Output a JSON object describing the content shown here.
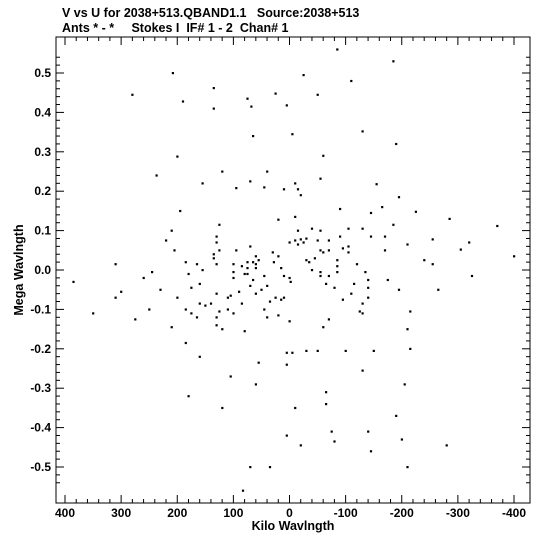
{
  "header": {
    "title_line1": "V vs U for 2038+513.QBAND1.1   Source:2038+513",
    "title_line2": "Ants * - *     Stokes I  IF# 1 - 2  Chan# 1"
  },
  "chart_data": {
    "type": "scatter",
    "xlabel": "Kilo Wavlngth",
    "ylabel": "Mega Wavlngth",
    "xlim": [
      410,
      -410
    ],
    "ylim": [
      -0.57,
      0.57
    ],
    "xticks": [
      400,
      300,
      200,
      100,
      0,
      -100,
      -200,
      -300,
      -400
    ],
    "yticks": [
      0.5,
      0.4,
      0.3,
      0.2,
      0.1,
      0.0,
      -0.1,
      -0.2,
      -0.3,
      -0.4,
      -0.5
    ],
    "xtick_labels": [
      "400",
      "300",
      "200",
      "100",
      "0",
      "-100",
      "-200",
      "-300",
      "-400"
    ],
    "ytick_labels": [
      "0.5",
      "0.4",
      "0.3",
      "0.2",
      "0.1",
      "0.0",
      "-0.1",
      "-0.2",
      "-0.3",
      "-0.4",
      "-0.5"
    ],
    "point_color": "#000000",
    "points": [
      [
        -85,
        0.56
      ],
      [
        -185,
        0.53
      ],
      [
        -25,
        0.495
      ],
      [
        208,
        0.5
      ],
      [
        280,
        0.445
      ],
      [
        -110,
        0.48
      ],
      [
        135,
        0.462
      ],
      [
        190,
        0.428
      ],
      [
        75,
        0.435
      ],
      [
        68,
        0.415
      ],
      [
        135,
        0.41
      ],
      [
        25,
        0.448
      ],
      [
        5,
        0.418
      ],
      [
        -50,
        0.445
      ],
      [
        -130,
        0.352
      ],
      [
        -190,
        0.32
      ],
      [
        -5,
        0.345
      ],
      [
        65,
        0.34
      ],
      [
        200,
        0.288
      ],
      [
        -60,
        0.29
      ],
      [
        120,
        0.25
      ],
      [
        40,
        0.25
      ],
      [
        237,
        0.24
      ],
      [
        -155,
        0.218
      ],
      [
        155,
        0.22
      ],
      [
        -55,
        0.232
      ],
      [
        70,
        0.225
      ],
      [
        45,
        0.21
      ],
      [
        10,
        0.205
      ],
      [
        -10,
        0.22
      ],
      [
        -15,
        0.205
      ],
      [
        95,
        0.208
      ],
      [
        -195,
        0.185
      ],
      [
        -165,
        0.16
      ],
      [
        -90,
        0.155
      ],
      [
        195,
        0.15
      ],
      [
        -10,
        0.135
      ],
      [
        -20,
        0.19
      ],
      [
        20,
        0.128
      ],
      [
        -40,
        0.105
      ],
      [
        -185,
        0.115
      ],
      [
        -225,
        0.148
      ],
      [
        -285,
        0.13
      ],
      [
        -370,
        0.112
      ],
      [
        -400,
        0.035
      ],
      [
        -320,
        0.07
      ],
      [
        -305,
        0.052
      ],
      [
        -145,
        0.145
      ],
      [
        -105,
        0.105
      ],
      [
        -130,
        0.105
      ],
      [
        -145,
        0.085
      ],
      [
        -170,
        0.085
      ],
      [
        -210,
        0.065
      ],
      [
        -255,
        0.078
      ],
      [
        -240,
        0.025
      ],
      [
        -255,
        0.015
      ],
      [
        -265,
        -0.05
      ],
      [
        -325,
        -0.015
      ],
      [
        -70,
        0.075
      ],
      [
        -50,
        0.075
      ],
      [
        -30,
        0.08
      ],
      [
        -20,
        0.078
      ],
      [
        -15,
        0.065
      ],
      [
        -90,
        0.085
      ],
      [
        -95,
        0.055
      ],
      [
        -105,
        0.045
      ],
      [
        -70,
        0.05
      ],
      [
        -60,
        0.045
      ],
      [
        -45,
        0.03
      ],
      [
        -30,
        0.025
      ],
      [
        -55,
        0.05
      ],
      [
        -85,
        0.025
      ],
      [
        -85,
        0.01
      ],
      [
        -85,
        -0.005
      ],
      [
        -70,
        -0.015
      ],
      [
        -65,
        -0.035
      ],
      [
        -80,
        -0.045
      ],
      [
        -120,
        0.015
      ],
      [
        -135,
        -0.005
      ],
      [
        -140,
        -0.025
      ],
      [
        -140,
        -0.045
      ],
      [
        -140,
        -0.07
      ],
      [
        -130,
        -0.085
      ],
      [
        -125,
        -0.105
      ],
      [
        -175,
        -0.025
      ],
      [
        -195,
        -0.05
      ],
      [
        -215,
        -0.105
      ],
      [
        -210,
        -0.15
      ],
      [
        -215,
        -0.2
      ],
      [
        -205,
        -0.29
      ],
      [
        -190,
        -0.37
      ],
      [
        -200,
        -0.43
      ],
      [
        -210,
        -0.5
      ],
      [
        -280,
        -0.445
      ],
      [
        -140,
        -0.41
      ],
      [
        -145,
        -0.46
      ],
      [
        -75,
        -0.41
      ],
      [
        -80,
        -0.435
      ],
      [
        -65,
        -0.34
      ],
      [
        -20,
        -0.445
      ],
      [
        5,
        -0.42
      ],
      [
        -10,
        -0.35
      ],
      [
        35,
        -0.5
      ],
      [
        70,
        -0.5
      ],
      [
        83,
        -0.56
      ],
      [
        -130,
        -0.255
      ],
      [
        -100,
        -0.205
      ],
      [
        -50,
        -0.205
      ],
      [
        -30,
        -0.205
      ],
      [
        -5,
        -0.21
      ],
      [
        5,
        -0.21
      ],
      [
        5,
        -0.24
      ],
      [
        -65,
        -0.31
      ],
      [
        -70,
        -0.125
      ],
      [
        -60,
        -0.145
      ],
      [
        0,
        -0.13
      ],
      [
        20,
        -0.115
      ],
      [
        40,
        -0.12
      ],
      [
        45,
        -0.1
      ],
      [
        35,
        -0.08
      ],
      [
        25,
        -0.07
      ],
      [
        15,
        -0.075
      ],
      [
        10,
        -0.07
      ],
      [
        60,
        -0.06
      ],
      [
        70,
        -0.04
      ],
      [
        45,
        -0.015
      ],
      [
        65,
        -0.025
      ],
      [
        80,
        -0.01
      ],
      [
        60,
        0.005
      ],
      [
        40,
        -0.04
      ],
      [
        50,
        -0.05
      ],
      [
        90,
        -0.055
      ],
      [
        105,
        -0.065
      ],
      [
        110,
        -0.1
      ],
      [
        125,
        -0.105
      ],
      [
        130,
        -0.12
      ],
      [
        130,
        -0.06
      ],
      [
        140,
        -0.085
      ],
      [
        150,
        -0.09
      ],
      [
        160,
        -0.085
      ],
      [
        175,
        -0.11
      ],
      [
        165,
        -0.12
      ],
      [
        185,
        -0.1
      ],
      [
        160,
        -0.035
      ],
      [
        175,
        -0.045
      ],
      [
        200,
        -0.07
      ],
      [
        210,
        -0.145
      ],
      [
        185,
        -0.185
      ],
      [
        160,
        -0.22
      ],
      [
        130,
        -0.14
      ],
      [
        120,
        -0.15
      ],
      [
        100,
        -0.11
      ],
      [
        85,
        -0.085
      ],
      [
        80,
        -0.155
      ],
      [
        55,
        -0.235
      ],
      [
        60,
        -0.29
      ],
      [
        105,
        -0.27
      ],
      [
        180,
        -0.32
      ],
      [
        120,
        -0.35
      ],
      [
        110,
        -0.07
      ],
      [
        125,
        0.05
      ],
      [
        130,
        0.07
      ],
      [
        130,
        0.085
      ],
      [
        135,
        0.04
      ],
      [
        135,
        0.03
      ],
      [
        130,
        0.015
      ],
      [
        165,
        0.015
      ],
      [
        155,
        0
      ],
      [
        180,
        -0.01
      ],
      [
        185,
        0.02
      ],
      [
        205,
        0.05
      ],
      [
        210,
        0.1
      ],
      [
        220,
        0.075
      ],
      [
        245,
        -0.005
      ],
      [
        250,
        -0.1
      ],
      [
        275,
        -0.125
      ],
      [
        310,
        -0.07
      ],
      [
        300,
        -0.055
      ],
      [
        310,
        0.015
      ],
      [
        385,
        -0.03
      ],
      [
        350,
        -0.11
      ],
      [
        260,
        -0.02
      ],
      [
        230,
        -0.05
      ],
      [
        125,
        0.115
      ],
      [
        95,
        0.05
      ],
      [
        100,
        0.015
      ],
      [
        100,
        -0.005
      ],
      [
        100,
        -0.02
      ],
      [
        85,
        0.01
      ],
      [
        75,
        0.02
      ],
      [
        75,
        0.005
      ],
      [
        75,
        -0.01
      ],
      [
        60,
        0.015
      ],
      [
        65,
        0.02
      ],
      [
        70,
        0.06
      ],
      [
        60,
        0.035
      ],
      [
        55,
        0.025
      ],
      [
        30,
        0.045
      ],
      [
        28,
        0.02
      ],
      [
        20,
        0.035
      ],
      [
        15,
        0.005
      ],
      [
        10,
        -0.015
      ],
      [
        0,
        -0.02
      ],
      [
        -2,
        -0.03
      ],
      [
        0,
        0.07
      ],
      [
        -10,
        0.075
      ],
      [
        -15,
        0.1
      ],
      [
        -25,
        0.07
      ],
      [
        -35,
        0.02
      ],
      [
        -40,
        0.0
      ],
      [
        -55,
        -0.005
      ],
      [
        -55,
        -0.015
      ],
      [
        -110,
        -0.06
      ],
      [
        -150,
        -0.205
      ],
      [
        -115,
        -0.035
      ],
      [
        -95,
        -0.075
      ],
      [
        -130,
        -0.11
      ],
      [
        -170,
        0.05
      ],
      [
        -105,
        0.06
      ],
      [
        -55,
        0.1
      ]
    ]
  }
}
